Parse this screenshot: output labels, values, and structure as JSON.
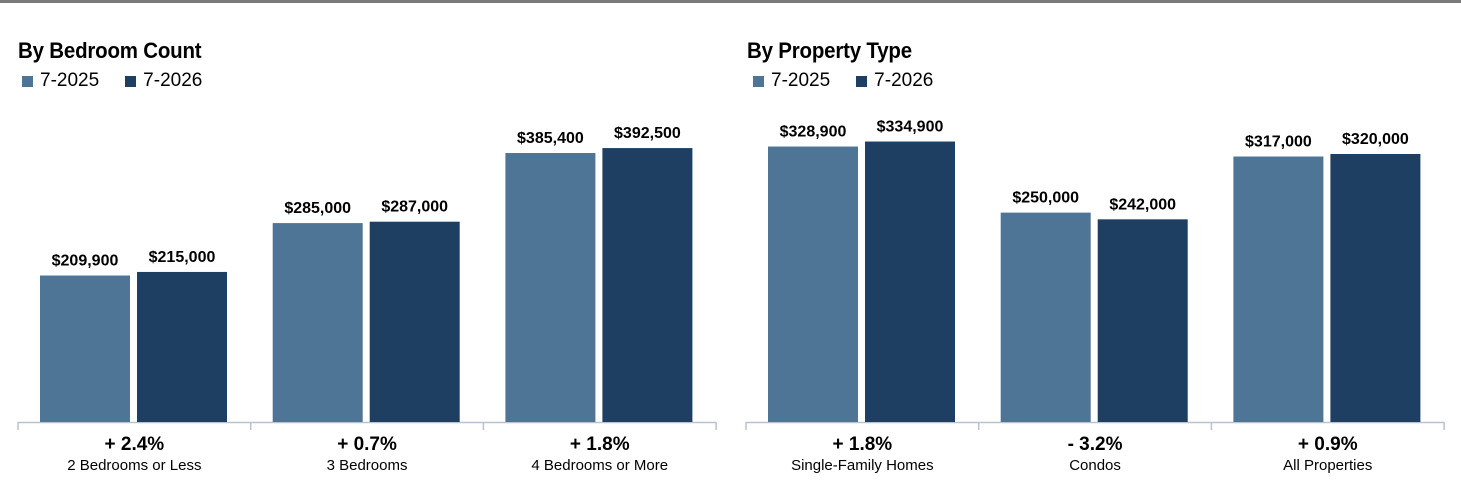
{
  "legend_colors": {
    "prior": "#4e7595",
    "current": "#1f3f62"
  },
  "chart_data": [
    {
      "type": "bar",
      "title": "By Bedroom Count",
      "series": [
        {
          "name": "7-2025",
          "values": [
            209900,
            285000,
            385400
          ]
        },
        {
          "name": "7-2026",
          "values": [
            215000,
            287000,
            392500
          ]
        }
      ],
      "categories": [
        "2 Bedrooms or Less",
        "3 Bedrooms",
        "4 Bedrooms or More"
      ],
      "value_labels": [
        [
          "$209,900",
          "$285,000",
          "$385,400"
        ],
        [
          "$215,000",
          "$287,000",
          "$392,500"
        ]
      ],
      "changes": [
        "+ 2.4%",
        "+ 0.7%",
        "+ 1.8%"
      ],
      "xlabel": "",
      "ylabel": "",
      "ylim": [
        0,
        480000
      ],
      "grid": false,
      "legend_position": "top-left"
    },
    {
      "type": "bar",
      "title": "By Property Type",
      "series": [
        {
          "name": "7-2025",
          "values": [
            328900,
            250000,
            317000
          ]
        },
        {
          "name": "7-2026",
          "values": [
            334900,
            242000,
            320000
          ]
        }
      ],
      "categories": [
        "Single-Family Homes",
        "Condos",
        "All Properties"
      ],
      "value_labels": [
        [
          "$328,900",
          "$250,000",
          "$317,000"
        ],
        [
          "$334,900",
          "$242,000",
          "$320,000"
        ]
      ],
      "changes": [
        "+ 1.8%",
        "- 3.2%",
        "+ 0.9%"
      ],
      "xlabel": "",
      "ylabel": "",
      "ylim": [
        0,
        400000
      ],
      "grid": false,
      "legend_position": "top-left"
    }
  ]
}
